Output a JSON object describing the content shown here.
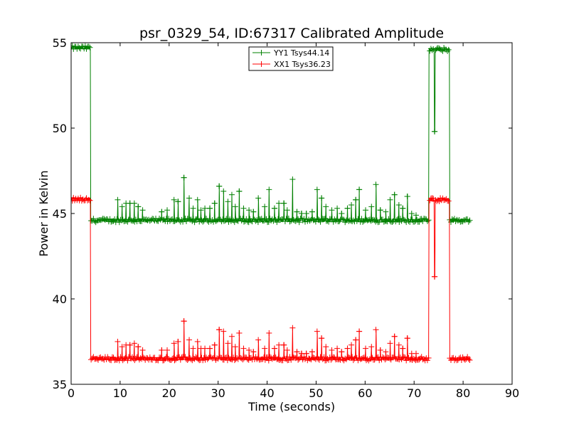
{
  "chart_data": {
    "type": "line",
    "title": "psr_0329_54, ID:67317 Calibrated Amplitude",
    "xlabel": "Time (seconds)",
    "ylabel": "Power in Kelvin",
    "xlim": [
      0,
      90
    ],
    "ylim": [
      35,
      55
    ],
    "xticks": [
      "0",
      "10",
      "20",
      "30",
      "40",
      "50",
      "60",
      "70",
      "80",
      "90"
    ],
    "yticks": [
      "35",
      "40",
      "45",
      "50",
      "55"
    ],
    "grid": false,
    "legend_position": "top-center",
    "series": [
      {
        "name": "YY1 Tsys44.14",
        "color": "#008000",
        "marker": "plus",
        "baseline": 44.6,
        "cal_on_level": 54.7,
        "segments": [
          {
            "x": [
              0,
              4
            ],
            "level": 54.7
          },
          {
            "x": [
              4,
              73
            ],
            "level": 44.6
          },
          {
            "x": [
              73,
              77.2
            ],
            "level": 54.6
          },
          {
            "x": [
              77.2,
              81.5
            ],
            "level": 44.6
          }
        ],
        "dips": [
          {
            "x": 74.2,
            "y": 49.8
          }
        ],
        "spikes": [
          [
            9.5,
            45.8
          ],
          [
            10.4,
            45.4
          ],
          [
            11.2,
            45.6
          ],
          [
            12,
            45.6
          ],
          [
            12.9,
            45.6
          ],
          [
            13.7,
            45.4
          ],
          [
            14.6,
            45.2
          ],
          [
            18.5,
            45.1
          ],
          [
            19.6,
            45.2
          ],
          [
            21,
            45.8
          ],
          [
            21.8,
            45.7
          ],
          [
            23,
            47.1
          ],
          [
            24.1,
            45.9
          ],
          [
            24.9,
            45.3
          ],
          [
            25.8,
            45.8
          ],
          [
            26.5,
            45.2
          ],
          [
            27.3,
            45.3
          ],
          [
            28.3,
            45.3
          ],
          [
            29.3,
            45.6
          ],
          [
            30.2,
            46.6
          ],
          [
            31.1,
            46.3
          ],
          [
            32,
            45.7
          ],
          [
            32.8,
            46.1
          ],
          [
            33.5,
            45.4
          ],
          [
            34.3,
            46.3
          ],
          [
            35.2,
            45.3
          ],
          [
            36.3,
            45.2
          ],
          [
            37.2,
            45.1
          ],
          [
            38.2,
            45.9
          ],
          [
            39.5,
            45.4
          ],
          [
            40.4,
            46.4
          ],
          [
            41.5,
            45.3
          ],
          [
            42.4,
            45.6
          ],
          [
            43.4,
            45.6
          ],
          [
            44.1,
            45.2
          ],
          [
            45.2,
            47.0
          ],
          [
            46.1,
            45.1
          ],
          [
            47,
            45.0
          ],
          [
            48,
            45.0
          ],
          [
            49.2,
            45.1
          ],
          [
            50.2,
            46.4
          ],
          [
            51.1,
            45.9
          ],
          [
            52,
            45.4
          ],
          [
            53.2,
            45.2
          ],
          [
            54.3,
            45.3
          ],
          [
            55.2,
            45.0
          ],
          [
            56.4,
            45.3
          ],
          [
            57.2,
            45.5
          ],
          [
            58.1,
            45.8
          ],
          [
            58.8,
            46.4
          ],
          [
            60.1,
            45.2
          ],
          [
            61.3,
            45.4
          ],
          [
            62.2,
            46.7
          ],
          [
            63.1,
            45.2
          ],
          [
            64.2,
            45.1
          ],
          [
            65.1,
            45.8
          ],
          [
            66,
            46.1
          ],
          [
            66.9,
            45.5
          ],
          [
            67.7,
            45.3
          ],
          [
            68.6,
            46.0
          ],
          [
            69.5,
            45.0
          ],
          [
            70.4,
            44.9
          ]
        ]
      },
      {
        "name": "XX1 Tsys36.23",
        "color": "#ff0000",
        "marker": "plus",
        "baseline": 36.5,
        "cal_on_level": 45.85,
        "segments": [
          {
            "x": [
              0,
              4
            ],
            "level": 45.85
          },
          {
            "x": [
              4,
              73
            ],
            "level": 36.5
          },
          {
            "x": [
              73,
              77.2
            ],
            "level": 45.8
          },
          {
            "x": [
              77.2,
              81.5
            ],
            "level": 36.5
          }
        ],
        "dips": [
          {
            "x": 74.2,
            "y": 41.3
          }
        ],
        "spikes": [
          [
            9.5,
            37.5
          ],
          [
            10.4,
            37.2
          ],
          [
            11.2,
            37.3
          ],
          [
            12,
            37.3
          ],
          [
            12.9,
            37.4
          ],
          [
            13.7,
            37.2
          ],
          [
            14.6,
            37.0
          ],
          [
            18.5,
            37.0
          ],
          [
            19.6,
            37.0
          ],
          [
            21,
            37.4
          ],
          [
            21.8,
            37.5
          ],
          [
            23,
            38.7
          ],
          [
            24.1,
            37.6
          ],
          [
            24.9,
            37.1
          ],
          [
            25.8,
            37.5
          ],
          [
            26.5,
            37.1
          ],
          [
            27.3,
            37.1
          ],
          [
            28.3,
            37.1
          ],
          [
            29.3,
            37.3
          ],
          [
            30.2,
            38.2
          ],
          [
            31.1,
            38.1
          ],
          [
            32,
            37.4
          ],
          [
            32.8,
            37.8
          ],
          [
            33.5,
            37.2
          ],
          [
            34.3,
            38.0
          ],
          [
            35.2,
            37.1
          ],
          [
            36.3,
            37.0
          ],
          [
            37.2,
            36.9
          ],
          [
            38.2,
            37.6
          ],
          [
            39.5,
            37.1
          ],
          [
            40.4,
            38.0
          ],
          [
            41.5,
            37.1
          ],
          [
            42.4,
            37.3
          ],
          [
            43.4,
            37.3
          ],
          [
            44.1,
            37.0
          ],
          [
            45.2,
            38.3
          ],
          [
            46.1,
            36.9
          ],
          [
            47,
            36.8
          ],
          [
            48,
            36.8
          ],
          [
            49.2,
            36.9
          ],
          [
            50.2,
            38.1
          ],
          [
            51.1,
            37.7
          ],
          [
            52,
            37.2
          ],
          [
            53.2,
            37.0
          ],
          [
            54.3,
            37.1
          ],
          [
            55.2,
            36.9
          ],
          [
            56.4,
            37.1
          ],
          [
            57.2,
            37.3
          ],
          [
            58.1,
            37.6
          ],
          [
            58.8,
            38.1
          ],
          [
            60.1,
            37.1
          ],
          [
            61.3,
            37.2
          ],
          [
            62.2,
            38.2
          ],
          [
            63.1,
            37.0
          ],
          [
            64.2,
            36.9
          ],
          [
            65.1,
            37.4
          ],
          [
            66,
            37.8
          ],
          [
            66.9,
            37.3
          ],
          [
            67.7,
            37.1
          ],
          [
            68.6,
            37.7
          ],
          [
            69.5,
            36.8
          ],
          [
            70.4,
            36.8
          ]
        ]
      }
    ]
  }
}
